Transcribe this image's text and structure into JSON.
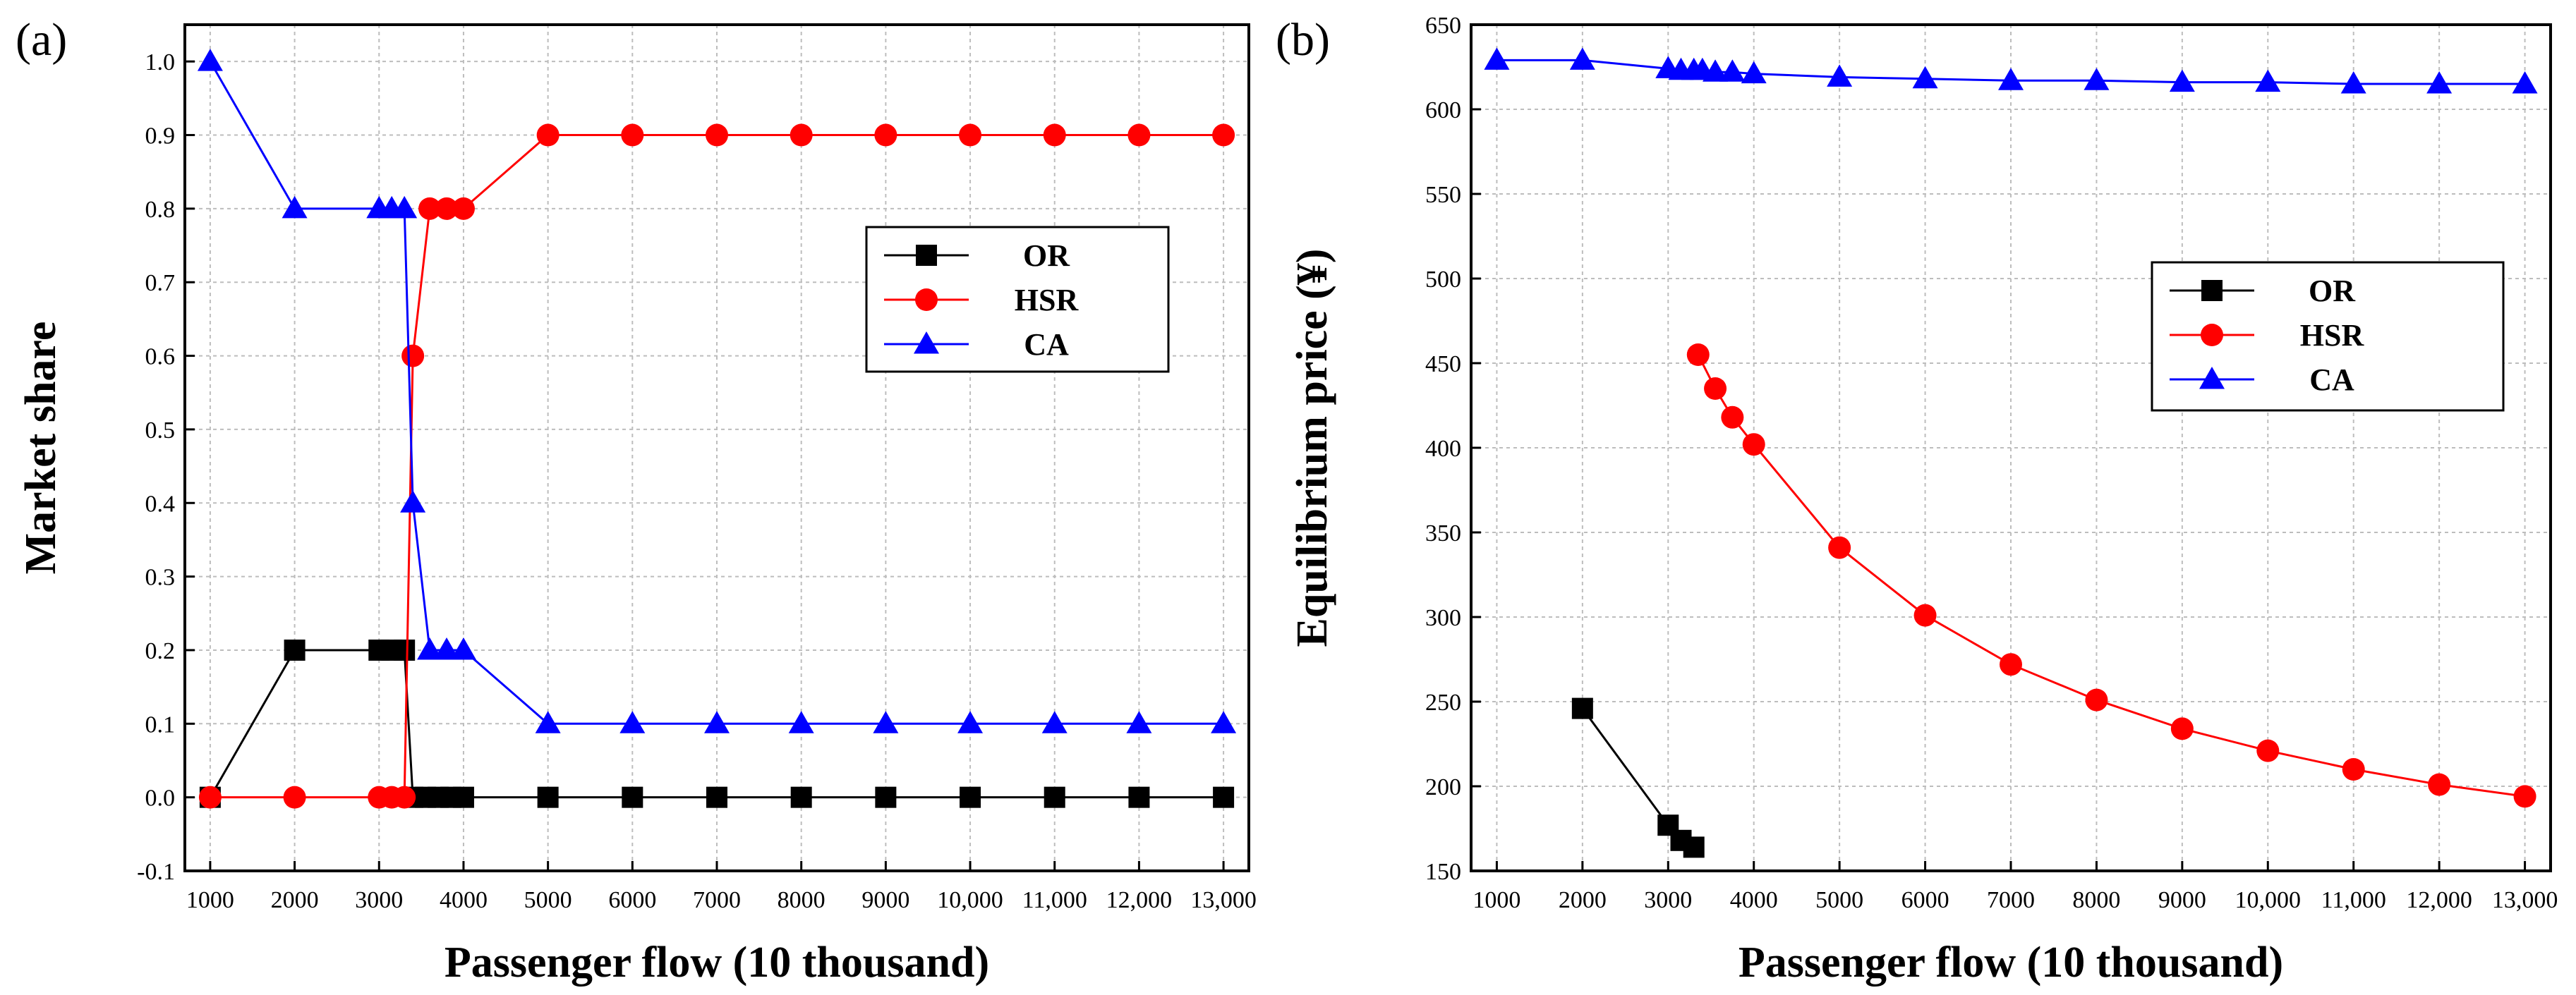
{
  "chart_data": [
    {
      "type": "line",
      "panel_label": "(a)",
      "xlabel": "Passenger flow (10 thousand)",
      "ylabel": "Market share",
      "xlim": [
        700,
        13300
      ],
      "ylim": [
        -0.1,
        1.05
      ],
      "x_ticks": [
        1000,
        2000,
        3000,
        4000,
        5000,
        6000,
        7000,
        8000,
        9000,
        10000,
        11000,
        12000,
        13000
      ],
      "x_tick_labels": [
        "1000",
        "2000",
        "3000",
        "4000",
        "5000",
        "6000",
        "7000",
        "8000",
        "9000",
        "10,000",
        "11,000",
        "12,000",
        "13,000"
      ],
      "y_ticks": [
        -0.1,
        0.0,
        0.1,
        0.2,
        0.3,
        0.4,
        0.5,
        0.6,
        0.7,
        0.8,
        0.9,
        1.0
      ],
      "y_tick_labels": [
        "-0.1",
        "0.0",
        "0.1",
        "0.2",
        "0.3",
        "0.4",
        "0.5",
        "0.6",
        "0.7",
        "0.8",
        "0.9",
        "1.0"
      ],
      "grid": true,
      "legend_position": "right",
      "series": [
        {
          "name": "OR",
          "color": "#000000",
          "marker": "square",
          "x": [
            1000,
            2000,
            3000,
            3150,
            3300,
            3400,
            3550,
            3700,
            3850,
            4000,
            5000,
            6000,
            7000,
            8000,
            9000,
            10000,
            11000,
            12000,
            13000
          ],
          "y": [
            0.0,
            0.2,
            0.2,
            0.2,
            0.2,
            0.0,
            0.0,
            0.0,
            0.0,
            0.0,
            0.0,
            0.0,
            0.0,
            0.0,
            0.0,
            0.0,
            0.0,
            0.0,
            0.0
          ]
        },
        {
          "name": "HSR",
          "color": "#ff0000",
          "marker": "circle",
          "x": [
            1000,
            2000,
            3000,
            3150,
            3300,
            3400,
            3600,
            3800,
            4000,
            5000,
            6000,
            7000,
            8000,
            9000,
            10000,
            11000,
            12000,
            13000
          ],
          "y": [
            0.0,
            0.0,
            0.0,
            0.0,
            0.0,
            0.6,
            0.8,
            0.8,
            0.8,
            0.9,
            0.9,
            0.9,
            0.9,
            0.9,
            0.9,
            0.9,
            0.9,
            0.9
          ]
        },
        {
          "name": "CA",
          "color": "#0000ff",
          "marker": "triangle",
          "x": [
            1000,
            2000,
            3000,
            3150,
            3300,
            3400,
            3600,
            3800,
            4000,
            5000,
            6000,
            7000,
            8000,
            9000,
            10000,
            11000,
            12000,
            13000
          ],
          "y": [
            1.0,
            0.8,
            0.8,
            0.8,
            0.8,
            0.4,
            0.2,
            0.2,
            0.2,
            0.1,
            0.1,
            0.1,
            0.1,
            0.1,
            0.1,
            0.1,
            0.1,
            0.1
          ]
        }
      ]
    },
    {
      "type": "line",
      "panel_label": "(b)",
      "xlabel": "Passenger flow (10 thousand)",
      "ylabel": "Equilibrium price (¥)",
      "xlim": [
        700,
        13300
      ],
      "ylim": [
        150,
        650
      ],
      "x_ticks": [
        1000,
        2000,
        3000,
        4000,
        5000,
        6000,
        7000,
        8000,
        9000,
        10000,
        11000,
        12000,
        13000
      ],
      "x_tick_labels": [
        "1000",
        "2000",
        "3000",
        "4000",
        "5000",
        "6000",
        "7000",
        "8000",
        "9000",
        "10,000",
        "11,000",
        "12,000",
        "13,000"
      ],
      "y_ticks": [
        150,
        200,
        250,
        300,
        350,
        400,
        450,
        500,
        550,
        600,
        650
      ],
      "y_tick_labels": [
        "150",
        "200",
        "250",
        "300",
        "350",
        "400",
        "450",
        "500",
        "550",
        "600",
        "650"
      ],
      "grid": true,
      "legend_position": "right",
      "series": [
        {
          "name": "OR",
          "color": "#000000",
          "marker": "square",
          "x": [
            2000,
            3000,
            3150,
            3300
          ],
          "y": [
            246,
            177,
            168,
            164
          ]
        },
        {
          "name": "HSR",
          "color": "#ff0000",
          "marker": "circle",
          "x": [
            3350,
            3550,
            3750,
            4000,
            5000,
            6000,
            7000,
            8000,
            9000,
            10000,
            11000,
            12000,
            13000
          ],
          "y": [
            455,
            435,
            418,
            402,
            341,
            301,
            272,
            251,
            234,
            221,
            210,
            201,
            194
          ]
        },
        {
          "name": "CA",
          "color": "#0000ff",
          "marker": "triangle",
          "x": [
            1000,
            2000,
            3000,
            3150,
            3300,
            3400,
            3550,
            3750,
            4000,
            5000,
            6000,
            7000,
            8000,
            9000,
            10000,
            11000,
            12000,
            13000
          ],
          "y": [
            629,
            629,
            624,
            623,
            623,
            623,
            622,
            622,
            621,
            619,
            618,
            617,
            617,
            616,
            616,
            615,
            615,
            615
          ]
        }
      ]
    }
  ]
}
